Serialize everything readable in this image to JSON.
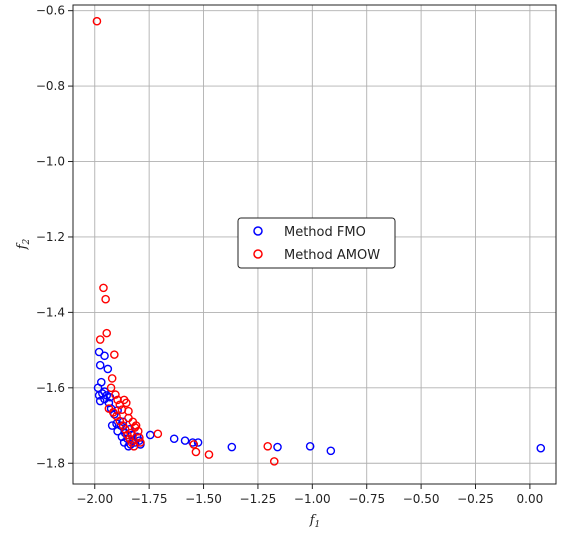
{
  "chart_data": {
    "type": "scatter",
    "title": "",
    "xlabel": "f",
    "xlabel_sub": "1",
    "ylabel": "f",
    "ylabel_sub": "2",
    "xlim": [
      -2.1,
      0.12
    ],
    "ylim": [
      -1.855,
      -0.585
    ],
    "xticks": [
      -2.0,
      -1.75,
      -1.5,
      -1.25,
      -1.0,
      -0.75,
      -0.5,
      -0.25,
      0.0
    ],
    "xtick_labels": [
      "−2.00",
      "−1.75",
      "−1.50",
      "−1.25",
      "−1.00",
      "−0.75",
      "−0.50",
      "−0.25",
      "0.00"
    ],
    "yticks": [
      -1.8,
      -1.6,
      -1.4,
      -1.2,
      -1.0,
      -0.8,
      -0.6
    ],
    "ytick_labels": [
      "−1.8",
      "−1.6",
      "−1.4",
      "−1.2",
      "−1.0",
      "−0.8",
      "−0.6"
    ],
    "grid": true,
    "legend_position": "center",
    "series": [
      {
        "name": "Method FMO",
        "color": "#0000ff",
        "marker": "hollow-circle",
        "points": [
          [
            -1.98,
            -1.505
          ],
          [
            -1.975,
            -1.54
          ],
          [
            -1.97,
            -1.585
          ],
          [
            -1.955,
            -1.515
          ],
          [
            -1.94,
            -1.55
          ],
          [
            -1.985,
            -1.6
          ],
          [
            -1.98,
            -1.62
          ],
          [
            -1.975,
            -1.635
          ],
          [
            -1.965,
            -1.615
          ],
          [
            -1.955,
            -1.63
          ],
          [
            -1.945,
            -1.62
          ],
          [
            -1.935,
            -1.64
          ],
          [
            -1.925,
            -1.655
          ],
          [
            -1.91,
            -1.67
          ],
          [
            -1.92,
            -1.7
          ],
          [
            -1.9,
            -1.695
          ],
          [
            -1.895,
            -1.715
          ],
          [
            -1.88,
            -1.7
          ],
          [
            -1.875,
            -1.73
          ],
          [
            -1.865,
            -1.745
          ],
          [
            -1.86,
            -1.72
          ],
          [
            -1.85,
            -1.735
          ],
          [
            -1.845,
            -1.755
          ],
          [
            -1.835,
            -1.75
          ],
          [
            -1.825,
            -1.74
          ],
          [
            -1.815,
            -1.745
          ],
          [
            -1.805,
            -1.73
          ],
          [
            -1.795,
            -1.74
          ],
          [
            -1.79,
            -1.75
          ],
          [
            -1.83,
            -1.725
          ],
          [
            -1.84,
            -1.71
          ],
          [
            -1.87,
            -1.69
          ],
          [
            -1.895,
            -1.66
          ],
          [
            -1.955,
            -1.61
          ],
          [
            -1.93,
            -1.625
          ],
          [
            -1.745,
            -1.725
          ],
          [
            -1.635,
            -1.735
          ],
          [
            -1.585,
            -1.74
          ],
          [
            -1.55,
            -1.745
          ],
          [
            -1.525,
            -1.745
          ],
          [
            -1.37,
            -1.757
          ],
          [
            -1.16,
            -1.757
          ],
          [
            -1.01,
            -1.755
          ],
          [
            -0.915,
            -1.767
          ],
          [
            0.05,
            -1.76
          ]
        ]
      },
      {
        "name": "Method AMOW",
        "color": "#ff0000",
        "marker": "hollow-circle",
        "points": [
          [
            -1.99,
            -0.628
          ],
          [
            -1.96,
            -1.335
          ],
          [
            -1.95,
            -1.365
          ],
          [
            -1.945,
            -1.455
          ],
          [
            -1.975,
            -1.472
          ],
          [
            -1.91,
            -1.512
          ],
          [
            -1.92,
            -1.575
          ],
          [
            -1.925,
            -1.6
          ],
          [
            -1.905,
            -1.618
          ],
          [
            -1.895,
            -1.632
          ],
          [
            -1.885,
            -1.645
          ],
          [
            -1.875,
            -1.658
          ],
          [
            -1.865,
            -1.632
          ],
          [
            -1.855,
            -1.64
          ],
          [
            -1.845,
            -1.662
          ],
          [
            -1.935,
            -1.655
          ],
          [
            -1.915,
            -1.665
          ],
          [
            -1.9,
            -1.675
          ],
          [
            -1.885,
            -1.688
          ],
          [
            -1.87,
            -1.7
          ],
          [
            -1.86,
            -1.71
          ],
          [
            -1.85,
            -1.725
          ],
          [
            -1.84,
            -1.735
          ],
          [
            -1.83,
            -1.745
          ],
          [
            -1.82,
            -1.755
          ],
          [
            -1.81,
            -1.7
          ],
          [
            -1.8,
            -1.715
          ],
          [
            -1.795,
            -1.732
          ],
          [
            -1.79,
            -1.745
          ],
          [
            -1.825,
            -1.69
          ],
          [
            -1.815,
            -1.705
          ],
          [
            -1.845,
            -1.68
          ],
          [
            -1.835,
            -1.72
          ],
          [
            -1.71,
            -1.722
          ],
          [
            -1.545,
            -1.75
          ],
          [
            -1.535,
            -1.77
          ],
          [
            -1.475,
            -1.777
          ],
          [
            -1.205,
            -1.755
          ],
          [
            -1.175,
            -1.795
          ]
        ]
      }
    ]
  }
}
